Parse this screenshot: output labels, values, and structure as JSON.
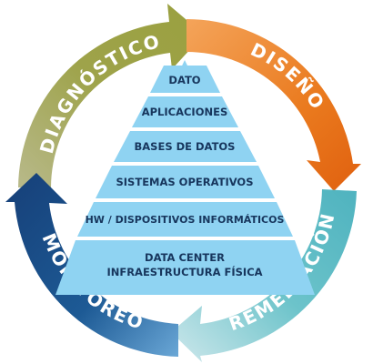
{
  "cycle": {
    "phases": [
      {
        "id": "diagnostico",
        "label": "DIAGNÓSTICO",
        "color": "#9ea34a"
      },
      {
        "id": "diseno",
        "label": "DISEÑO",
        "color": "#ea7a1e"
      },
      {
        "id": "remediacion",
        "label": "REMEDIACIÓN",
        "color": "#6cc3ca"
      },
      {
        "id": "monitoreo",
        "label": "MONITOREO",
        "color": "#1d5a95"
      }
    ]
  },
  "pyramid": {
    "tiers": [
      {
        "lines": [
          "DATO"
        ]
      },
      {
        "lines": [
          "APLICACIONES"
        ]
      },
      {
        "lines": [
          "BASES DE DATOS"
        ]
      },
      {
        "lines": [
          "SISTEMAS OPERATIVOS"
        ]
      },
      {
        "lines": [
          "HW / DISPOSITIVOS INFORMÁTICOS"
        ]
      },
      {
        "lines": [
          "DATA CENTER",
          "INFRAESTRUCTURA FÍSICA"
        ]
      }
    ],
    "fill_color": "#8fd3f2"
  }
}
